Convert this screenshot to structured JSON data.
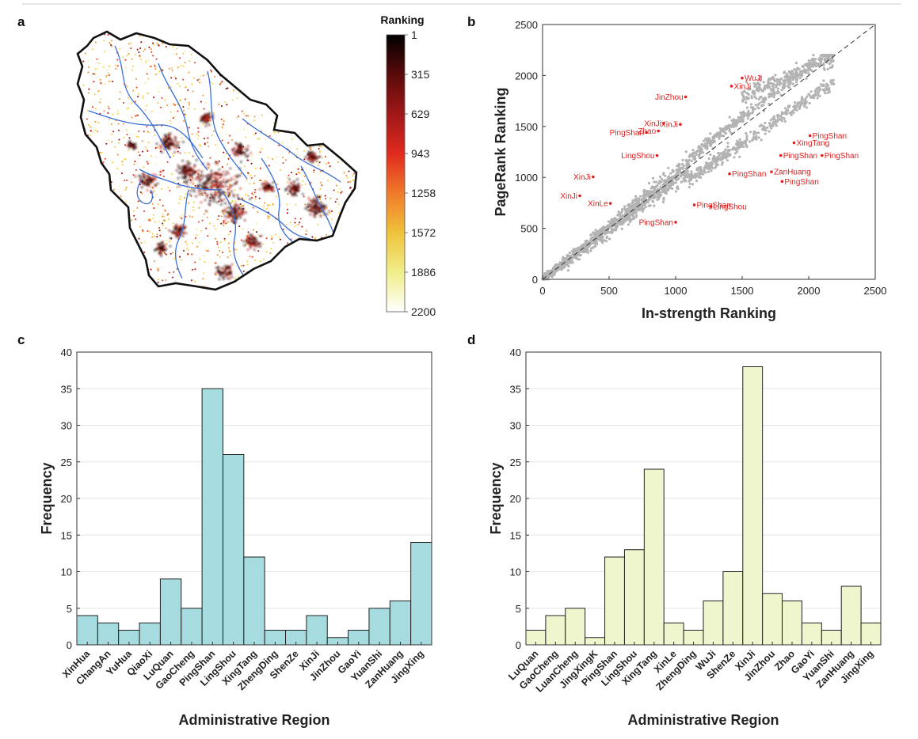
{
  "panel_labels": {
    "a": "a",
    "b": "b",
    "c": "c",
    "d": "d"
  },
  "colorbar": {
    "title": "Ranking",
    "ticks": [
      "1",
      "315",
      "629",
      "943",
      "1258",
      "1572",
      "1886",
      "2200"
    ],
    "colors": [
      "#000000",
      "#5a0a0a",
      "#a01818",
      "#e02a1e",
      "#f07a2a",
      "#f0c23a",
      "#f0ee8a",
      "#ffffff"
    ]
  },
  "chart_data": [
    {
      "panel": "b",
      "type": "scatter",
      "xlabel": "In-strength Ranking",
      "ylabel": "PageRank Ranking",
      "xlim": [
        0,
        2500
      ],
      "ylim": [
        0,
        2500
      ],
      "xticks": [
        0,
        500,
        1000,
        1500,
        2000,
        2500
      ],
      "yticks": [
        0,
        500,
        1000,
        1500,
        2000,
        2500
      ],
      "reference_line": "y = x (dashed)",
      "highlighted_points": [
        {
          "label": "WuJi",
          "x": 1500,
          "y": 1975
        },
        {
          "label": "XinJi",
          "x": 1420,
          "y": 1895
        },
        {
          "label": "JinZhou",
          "x": 1075,
          "y": 1790
        },
        {
          "label": "XinJi",
          "x": 910,
          "y": 1530
        },
        {
          "label": "XinJi",
          "x": 1035,
          "y": 1520
        },
        {
          "label": "Zhao",
          "x": 870,
          "y": 1455
        },
        {
          "label": "PingShan",
          "x": 780,
          "y": 1440
        },
        {
          "label": "PingShan",
          "x": 2010,
          "y": 1410
        },
        {
          "label": "XingTang",
          "x": 1890,
          "y": 1340
        },
        {
          "label": "LingShou",
          "x": 860,
          "y": 1215
        },
        {
          "label": "PingShan",
          "x": 1790,
          "y": 1215
        },
        {
          "label": "PingShan",
          "x": 2100,
          "y": 1215
        },
        {
          "label": "ZanHuang",
          "x": 1720,
          "y": 1055
        },
        {
          "label": "PingShan",
          "x": 1405,
          "y": 1035
        },
        {
          "label": "XinJi",
          "x": 380,
          "y": 1005
        },
        {
          "label": "PingShan",
          "x": 1800,
          "y": 960
        },
        {
          "label": "XinJi",
          "x": 280,
          "y": 820
        },
        {
          "label": "XinLe",
          "x": 510,
          "y": 745
        },
        {
          "label": "PingShan",
          "x": 1140,
          "y": 730
        },
        {
          "label": "LingShou",
          "x": 1265,
          "y": 715
        },
        {
          "label": "PingShan",
          "x": 1000,
          "y": 560
        }
      ]
    },
    {
      "panel": "c",
      "type": "bar",
      "xlabel": "Administrative Region",
      "ylabel": "Frequency",
      "ylim": [
        0,
        40
      ],
      "yticks": [
        0,
        5,
        10,
        15,
        20,
        25,
        30,
        35,
        40
      ],
      "color": "#a6dcdf",
      "categories": [
        "XinHua",
        "ChangAn",
        "YuHua",
        "QiaoXi",
        "LuQuan",
        "GaoCheng",
        "PingShan",
        "LingShou",
        "XingTang",
        "ZhengDing",
        "ShenZe",
        "XinJi",
        "JinZhou",
        "GaoYi",
        "YuanShi",
        "ZanHuang",
        "JingXing"
      ],
      "values": [
        4,
        3,
        2,
        3,
        9,
        5,
        35,
        26,
        12,
        2,
        2,
        4,
        1,
        2,
        5,
        6,
        14
      ]
    },
    {
      "panel": "d",
      "type": "bar",
      "xlabel": "Administrative Region",
      "ylabel": "Frequency",
      "ylim": [
        0,
        40
      ],
      "yticks": [
        0,
        5,
        10,
        15,
        20,
        25,
        30,
        35,
        40
      ],
      "color": "#eff5cc",
      "categories": [
        "LuQuan",
        "GaoCheng",
        "LuanCheng",
        "JingXingK",
        "PingShan",
        "LingShou",
        "XingTang",
        "XinLe",
        "ZhengDing",
        "WuJi",
        "ShenZe",
        "XinJi",
        "JinZhou",
        "Zhao",
        "GaoYi",
        "YuanShi",
        "ZanHuang",
        "JingXing"
      ],
      "values": [
        2,
        4,
        5,
        1,
        12,
        13,
        24,
        3,
        2,
        6,
        10,
        38,
        7,
        6,
        3,
        2,
        8,
        3
      ]
    }
  ]
}
